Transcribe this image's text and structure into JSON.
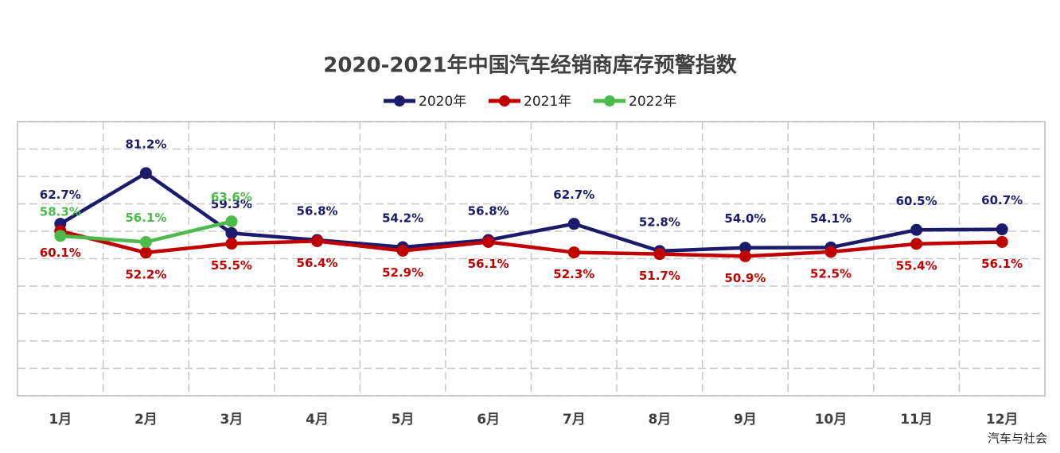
{
  "chart_data": {
    "type": "line",
    "title": "2020-2021年中国汽车经销商库存预警指数",
    "categories": [
      "1月",
      "2月",
      "3月",
      "4月",
      "5月",
      "6月",
      "7月",
      "8月",
      "9月",
      "10月",
      "11月",
      "12月"
    ],
    "series": [
      {
        "name": "2020年",
        "color": "#1c1a6b",
        "values": [
          62.7,
          81.2,
          59.3,
          56.8,
          54.2,
          56.8,
          62.7,
          52.8,
          54.0,
          54.1,
          60.5,
          60.7
        ],
        "value_labels": [
          "62.7%",
          "81.2%",
          "59.3%",
          "56.8%",
          "54.2%",
          "56.8%",
          "62.7%",
          "52.8%",
          "54.0%",
          "54.1%",
          "60.5%",
          "60.7%"
        ]
      },
      {
        "name": "2021年",
        "color": "#c00000",
        "values": [
          60.1,
          52.2,
          55.5,
          56.4,
          52.9,
          56.1,
          52.3,
          51.7,
          50.9,
          52.5,
          55.4,
          56.1
        ],
        "value_labels": [
          "60.1%",
          "52.2%",
          "55.5%",
          "56.4%",
          "52.9%",
          "56.1%",
          "52.3%",
          "51.7%",
          "50.9%",
          "52.5%",
          "55.4%",
          "56.1%"
        ]
      },
      {
        "name": "2022年",
        "color": "#4cbb4c",
        "values": [
          58.3,
          56.1,
          63.6,
          null,
          null,
          null,
          null,
          null,
          null,
          null,
          null,
          null
        ],
        "value_labels": [
          "58.3%",
          "56.1%",
          "63.6%",
          null,
          null,
          null,
          null,
          null,
          null,
          null,
          null,
          null
        ]
      }
    ],
    "ylim": [
      0,
      100
    ],
    "yticks": [
      0,
      10,
      20,
      30,
      40,
      50,
      60,
      70,
      80,
      90,
      100
    ],
    "grid": true,
    "legend": "top",
    "watermark": "汽车与社会"
  }
}
